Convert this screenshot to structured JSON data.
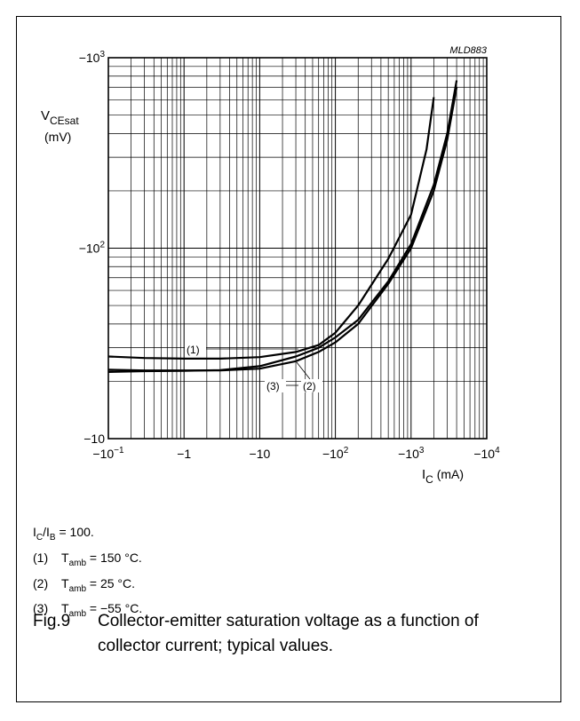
{
  "chart_data": {
    "type": "line",
    "code": "MLD883",
    "x_scale": "log",
    "y_scale": "log",
    "xlim": [
      -0.1,
      -10000
    ],
    "ylim": [
      -10,
      -1000
    ],
    "x_ticks": [
      {
        "value": -0.1,
        "base": "−10",
        "exp": "−1"
      },
      {
        "value": -1,
        "base": "−1",
        "exp": ""
      },
      {
        "value": -10,
        "base": "−10",
        "exp": ""
      },
      {
        "value": -100,
        "base": "−10",
        "exp": "2"
      },
      {
        "value": -1000,
        "base": "−10",
        "exp": "3"
      },
      {
        "value": -10000,
        "base": "−10",
        "exp": "4"
      }
    ],
    "y_ticks": [
      {
        "value": -10,
        "base": "−10",
        "exp": ""
      },
      {
        "value": -100,
        "base": "−10",
        "exp": "2"
      },
      {
        "value": -1000,
        "base": "−10",
        "exp": "3"
      }
    ],
    "xlabel": {
      "main": "I",
      "sub": "C",
      "unit": " (mA)"
    },
    "ylabel": {
      "main": "V",
      "sub": "CEsat",
      "unit": "(mV)"
    },
    "grid": true,
    "series": [
      {
        "name": "(1)",
        "x": [
          -0.1,
          -0.3,
          -1,
          -3,
          -10,
          -30,
          -60,
          -100,
          -200,
          -500,
          -1000,
          -1600,
          -2000
        ],
        "y": [
          -27,
          -26.5,
          -26.3,
          -26.3,
          -26.8,
          -28.5,
          -31,
          -36,
          -50,
          -88,
          -150,
          -330,
          -620
        ]
      },
      {
        "name": "(2)",
        "x": [
          -0.1,
          -0.3,
          -1,
          -3,
          -10,
          -30,
          -60,
          -100,
          -200,
          -500,
          -1000,
          -2000,
          -3000,
          -4000
        ],
        "y": [
          -23,
          -22.8,
          -22.8,
          -22.8,
          -23.3,
          -25.5,
          -28.5,
          -32,
          -40,
          -65,
          -100,
          -200,
          -370,
          -700
        ]
      },
      {
        "name": "(3)",
        "x": [
          -0.1,
          -0.3,
          -1,
          -3,
          -10,
          -30,
          -60,
          -100,
          -200,
          -500,
          -1000,
          -2000,
          -3000,
          -4000
        ],
        "y": [
          -22.4,
          -22.6,
          -22.7,
          -22.9,
          -24,
          -27,
          -30,
          -34,
          -42,
          -67,
          -105,
          -215,
          -400,
          -760
        ]
      }
    ],
    "annotations": [
      "(1)",
      "(2)",
      "(3)"
    ]
  },
  "notes": {
    "ratio": {
      "a": "I",
      "a_sub": "C",
      "sep": "/",
      "b": "I",
      "b_sub": "B",
      "rest": " = 100."
    },
    "items": [
      {
        "num": "(1)",
        "pre": "T",
        "sub": "amb",
        "rest": " = 150 °C."
      },
      {
        "num": "(2)",
        "pre": "T",
        "sub": "amb",
        "rest": " = 25 °C."
      },
      {
        "num": "(3)",
        "pre": "T",
        "sub": "amb",
        "rest": " = −55 °C."
      }
    ]
  },
  "caption": {
    "fig": "Fig.9",
    "text": "Collector-emitter saturation voltage as a function of collector current; typical values."
  }
}
